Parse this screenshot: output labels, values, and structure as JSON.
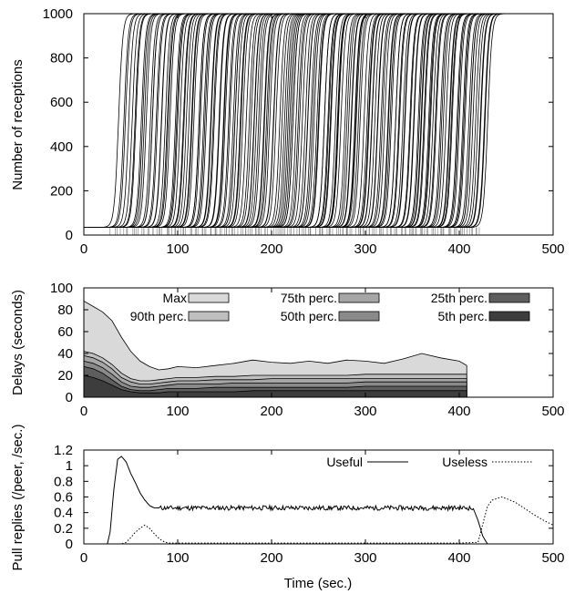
{
  "chart_data": [
    {
      "type": "line",
      "title": "",
      "xlabel": "",
      "ylabel": "Number of receptions",
      "xlim": [
        0,
        500
      ],
      "ylim": [
        0,
        1000
      ],
      "xticks": [
        "0",
        "100",
        "200",
        "300",
        "400",
        "500"
      ],
      "yticks": [
        "0",
        "200",
        "400",
        "600",
        "800",
        "1000"
      ],
      "series_description": "one cumulative S-curve per peer",
      "curves": {
        "count": 180,
        "base_level": 35,
        "max_level": 1000,
        "onset_first": 28,
        "onset_last": 420,
        "rise_time": 18
      },
      "grid": false,
      "legend": "none"
    },
    {
      "type": "area",
      "title": "",
      "xlabel": "",
      "ylabel": "Delays (seconds)",
      "xlim": [
        0,
        500
      ],
      "ylim": [
        0,
        100
      ],
      "xticks": [
        "0",
        "100",
        "200",
        "300",
        "400",
        "500"
      ],
      "yticks": [
        "0",
        "20",
        "40",
        "60",
        "80",
        "100"
      ],
      "x": [
        0,
        10,
        20,
        30,
        40,
        50,
        60,
        70,
        80,
        90,
        100,
        120,
        140,
        160,
        180,
        200,
        220,
        240,
        260,
        280,
        300,
        320,
        340,
        360,
        380,
        400,
        408
      ],
      "series": [
        {
          "name": "Max",
          "color": "#d9d9d9",
          "values": [
            88,
            83,
            78,
            70,
            55,
            42,
            33,
            28,
            25,
            26,
            28,
            27,
            29,
            31,
            34,
            32,
            31,
            33,
            31,
            34,
            33,
            31,
            35,
            40,
            36,
            33,
            29
          ]
        },
        {
          "name": "90th perc.",
          "color": "#bfbfbf",
          "values": [
            42,
            40,
            36,
            30,
            22,
            17,
            15,
            15,
            16,
            17,
            18,
            18,
            19,
            19,
            20,
            20,
            20,
            20,
            20,
            20,
            21,
            21,
            21,
            21,
            21,
            21,
            21
          ]
        },
        {
          "name": "75th perc.",
          "color": "#a6a6a6",
          "values": [
            38,
            36,
            32,
            26,
            18,
            14,
            12,
            12,
            13,
            14,
            15,
            15,
            16,
            16,
            16,
            17,
            17,
            17,
            17,
            17,
            17,
            17,
            17,
            17,
            17,
            17,
            17
          ]
        },
        {
          "name": "50th perc.",
          "color": "#8a8a8a",
          "values": [
            33,
            31,
            27,
            21,
            14,
            10,
            9,
            9,
            10,
            11,
            12,
            12,
            12,
            13,
            13,
            13,
            13,
            13,
            13,
            13,
            14,
            14,
            14,
            14,
            14,
            14,
            14
          ]
        },
        {
          "name": "25th perc.",
          "color": "#5e5e5e",
          "values": [
            28,
            26,
            22,
            16,
            10,
            7,
            6,
            6,
            7,
            8,
            8,
            8,
            9,
            9,
            9,
            9,
            9,
            9,
            9,
            9,
            10,
            10,
            10,
            10,
            10,
            10,
            10
          ]
        },
        {
          "name": "5th perc.",
          "color": "#3d3d3d",
          "values": [
            20,
            18,
            15,
            11,
            7,
            5,
            4,
            4,
            4,
            5,
            5,
            5,
            5,
            5,
            6,
            6,
            6,
            6,
            6,
            6,
            6,
            6,
            6,
            6,
            6,
            6,
            6
          ]
        }
      ],
      "legend_columns": [
        [
          "Max",
          "90th perc."
        ],
        [
          "75th perc.",
          "50th perc."
        ],
        [
          "25th perc.",
          "5th perc."
        ]
      ],
      "grid": false,
      "legend": "top"
    },
    {
      "type": "line",
      "title": "",
      "xlabel": "Time (sec.)",
      "ylabel": "Pull replies (/peer, /sec.)",
      "xlim": [
        0,
        500
      ],
      "ylim": [
        0,
        1.2
      ],
      "xticks": [
        "0",
        "100",
        "200",
        "300",
        "400",
        "500"
      ],
      "yticks": [
        "0",
        "0.2",
        "0.4",
        "0.6",
        "0.8",
        "1",
        "1.2"
      ],
      "series": [
        {
          "name": "Useful",
          "style": "solid",
          "x": [
            0,
            25,
            28,
            32,
            36,
            40,
            45,
            50,
            55,
            60,
            65,
            70,
            75,
            80,
            90,
            100,
            200,
            300,
            400,
            410,
            415,
            420,
            425,
            430,
            500
          ],
          "y": [
            0,
            0,
            0.15,
            0.7,
            1.08,
            1.12,
            1.05,
            0.9,
            0.78,
            0.65,
            0.56,
            0.49,
            0.46,
            0.46,
            0.46,
            0.46,
            0.46,
            0.46,
            0.46,
            0.46,
            0.45,
            0.3,
            0.1,
            0.0,
            0.0
          ]
        },
        {
          "name": "Useless",
          "style": "dotted",
          "x": [
            0,
            40,
            45,
            50,
            55,
            60,
            65,
            70,
            75,
            80,
            85,
            90,
            100,
            200,
            300,
            400,
            420,
            425,
            430,
            435,
            440,
            445,
            450,
            460,
            470,
            480,
            490,
            500
          ],
          "y": [
            0,
            0,
            0.02,
            0.08,
            0.15,
            0.2,
            0.24,
            0.2,
            0.13,
            0.07,
            0.03,
            0.01,
            0.01,
            0.01,
            0.01,
            0.01,
            0.02,
            0.25,
            0.48,
            0.56,
            0.58,
            0.6,
            0.58,
            0.53,
            0.45,
            0.37,
            0.3,
            0.24
          ]
        }
      ],
      "grid": false,
      "legend": "top-right"
    }
  ]
}
